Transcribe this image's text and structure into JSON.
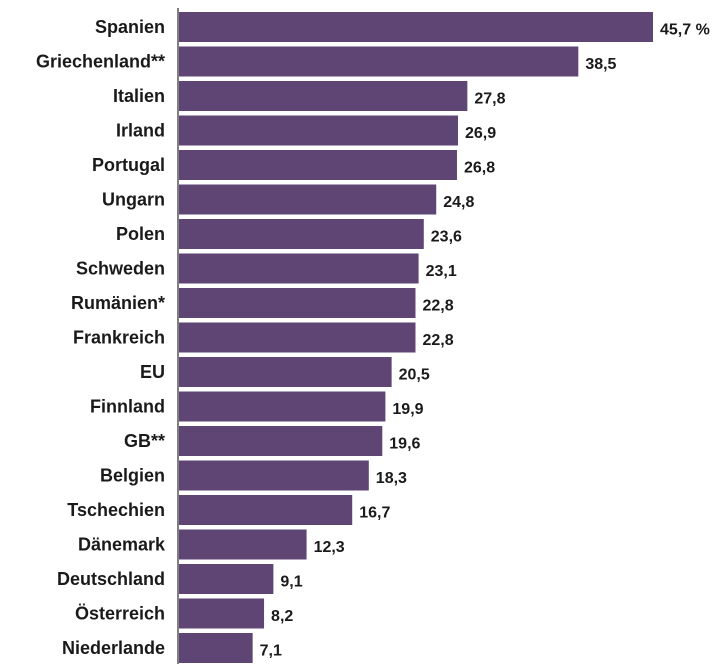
{
  "chart_data": {
    "type": "bar",
    "orientation": "horizontal",
    "categories": [
      "Spanien",
      "Griechenland**",
      "Italien",
      "Irland",
      "Portugal",
      "Ungarn",
      "Polen",
      "Schweden",
      "Rumänien*",
      "Frankreich",
      "EU",
      "Finnland",
      "GB**",
      "Belgien",
      "Tschechien",
      "Dänemark",
      "Deutschland",
      "Österreich",
      "Niederlande"
    ],
    "values": [
      45.7,
      38.5,
      27.8,
      26.9,
      26.8,
      24.8,
      23.6,
      23.1,
      22.8,
      22.8,
      20.5,
      19.9,
      19.6,
      18.3,
      16.7,
      12.3,
      9.1,
      8.2,
      7.1
    ],
    "value_labels": [
      "45,7 %",
      "38,5",
      "27,8",
      "26,9",
      "26,8",
      "24,8",
      "23,6",
      "23,1",
      "22,8",
      "22,8",
      "20,5",
      "19,9",
      "19,6",
      "18,3",
      "16,7",
      "12,3",
      "9,1",
      "8,2",
      "7,1"
    ],
    "xlim": [
      0,
      45.7
    ],
    "grid": false,
    "bar_color": "#5e4574"
  }
}
